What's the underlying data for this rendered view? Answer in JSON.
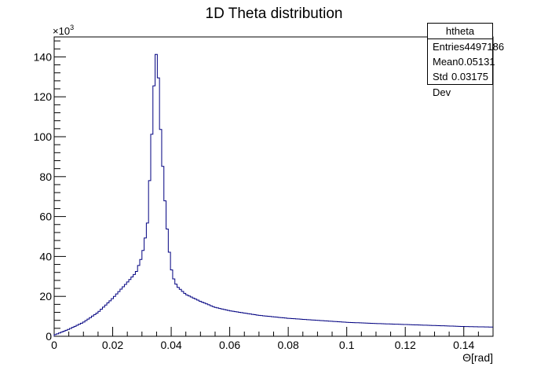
{
  "chart_data": {
    "type": "histogram",
    "title": "1D Theta distribution",
    "xlabel": "Θ[rad]",
    "ylabel": "",
    "y_multiplier": "×10",
    "y_multiplier_exp": "3",
    "xlim": [
      0,
      0.15
    ],
    "ylim": [
      0,
      150
    ],
    "x_ticks": [
      0,
      0.02,
      0.04,
      0.06,
      0.08,
      0.1,
      0.12,
      0.14
    ],
    "x_tick_labels": [
      "0",
      "0.02",
      "0.04",
      "0.06",
      "0.08",
      "0.1",
      "0.12",
      "0.14"
    ],
    "y_ticks": [
      0,
      20,
      40,
      60,
      80,
      100,
      120,
      140
    ],
    "y_tick_labels": [
      "0",
      "20",
      "40",
      "60",
      "80",
      "100",
      "120",
      "140"
    ],
    "grid": false,
    "line_color": "#000080",
    "bin_width": 0.00075,
    "anchors": [
      [
        0.0,
        0.6
      ],
      [
        0.005,
        3.5
      ],
      [
        0.01,
        7
      ],
      [
        0.015,
        12
      ],
      [
        0.02,
        19
      ],
      [
        0.025,
        27
      ],
      [
        0.028,
        32
      ],
      [
        0.03,
        40
      ],
      [
        0.031,
        48
      ],
      [
        0.032,
        58
      ],
      [
        0.033,
        90
      ],
      [
        0.034,
        120
      ],
      [
        0.0345,
        142
      ],
      [
        0.035,
        141
      ],
      [
        0.0355,
        135
      ],
      [
        0.036,
        113
      ],
      [
        0.037,
        88
      ],
      [
        0.038,
        65
      ],
      [
        0.039,
        47
      ],
      [
        0.04,
        34
      ],
      [
        0.041,
        28
      ],
      [
        0.042,
        25
      ],
      [
        0.045,
        21
      ],
      [
        0.05,
        17.5
      ],
      [
        0.055,
        14.5
      ],
      [
        0.06,
        12.8
      ],
      [
        0.07,
        10.5
      ],
      [
        0.08,
        9
      ],
      [
        0.09,
        8
      ],
      [
        0.1,
        7
      ],
      [
        0.11,
        6.4
      ],
      [
        0.12,
        5.9
      ],
      [
        0.13,
        5.4
      ],
      [
        0.14,
        4.9
      ],
      [
        0.15,
        4.6
      ]
    ]
  },
  "stats": {
    "title": "htheta",
    "entries_label": "Entries",
    "entries_value": "4497186",
    "mean_label": "Mean",
    "mean_value": "0.05131",
    "std_label": "Std Dev",
    "std_value": "0.03175"
  }
}
